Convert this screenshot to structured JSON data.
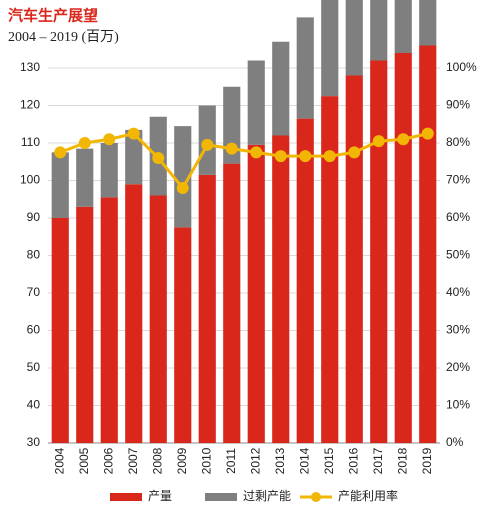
{
  "chart_data": {
    "type": "bar",
    "stacked": true,
    "title": "汽车生产展望",
    "subtitle": "2004 – 2019 (百万)",
    "categories": [
      "2004",
      "2005",
      "2006",
      "2007",
      "2008",
      "2009",
      "2010",
      "2011",
      "2012",
      "2013",
      "2014",
      "2015",
      "2016",
      "2017",
      "2018",
      "2019"
    ],
    "series": [
      {
        "name": "产量",
        "type": "bar",
        "color": "#d9271c",
        "values": [
          60,
          63,
          65.5,
          69,
          66,
          57.5,
          71.5,
          74.5,
          79.5,
          82,
          86.5,
          92.5,
          98,
          102,
          104,
          106
        ]
      },
      {
        "name": "过剩产能",
        "type": "bar",
        "color": "#7f7f7f",
        "values": [
          17.5,
          15.5,
          14.5,
          14.5,
          21,
          27,
          18.5,
          20.5,
          22.5,
          25,
          27,
          28.5,
          28,
          24,
          24,
          22.5
        ]
      },
      {
        "name": "产能利用率",
        "type": "line",
        "axis": "y2",
        "color": "#f2b705",
        "values": [
          77.5,
          80,
          81,
          82.5,
          76,
          68,
          79.5,
          78.5,
          77.5,
          76.5,
          76.5,
          76.5,
          77.5,
          80.5,
          81,
          82.5
        ]
      }
    ],
    "ylim": [
      30,
      130
    ],
    "yticks": [
      30,
      40,
      50,
      60,
      70,
      80,
      90,
      100,
      110,
      120,
      130
    ],
    "y2lim": [
      0,
      100
    ],
    "y2ticks": [
      {
        "value": 0,
        "label": "0%"
      },
      {
        "value": 10,
        "label": "10%"
      },
      {
        "value": 20,
        "label": "20%"
      },
      {
        "value": 30,
        "label": "30%"
      },
      {
        "value": 40,
        "label": "40%"
      },
      {
        "value": 50,
        "label": "50%"
      },
      {
        "value": 60,
        "label": "60%"
      },
      {
        "value": 70,
        "label": "70%"
      },
      {
        "value": 80,
        "label": "80%"
      },
      {
        "value": 90,
        "label": "90%"
      },
      {
        "value": 100,
        "label": "100%"
      }
    ],
    "grid": true,
    "legend": "bottom"
  }
}
